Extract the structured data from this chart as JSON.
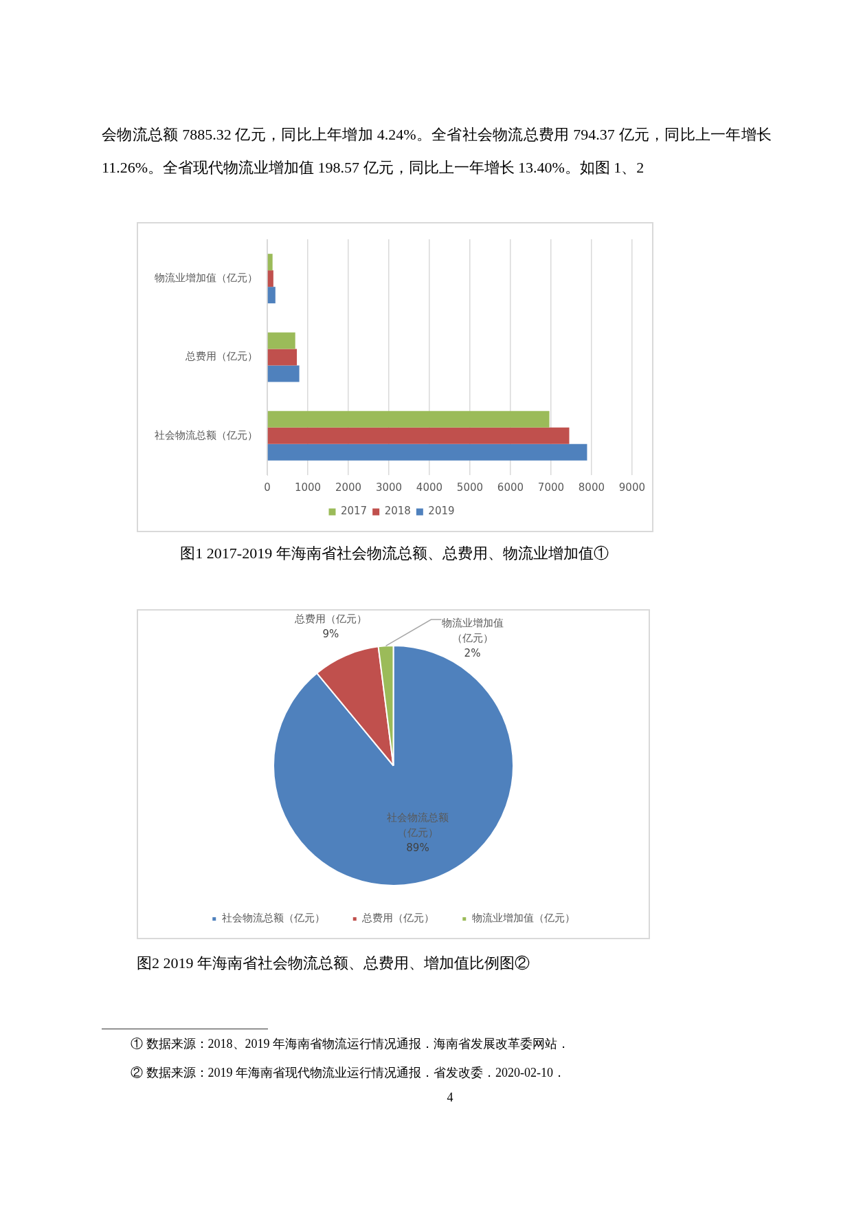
{
  "chart_data": [
    {
      "type": "bar",
      "orientation": "horizontal",
      "title": "图1  2017-2019 年海南省社会物流总额、总费用、物流业增加值①",
      "categories": [
        "物流业增加值（亿元）",
        "总费用（亿元）",
        "社会物流总额（亿元）"
      ],
      "series": [
        {
          "name": "2017",
          "color": "#9bbb59",
          "values": [
            130,
            690,
            6960
          ]
        },
        {
          "name": "2018",
          "color": "#c0504d",
          "values": [
            150,
            730,
            7450
          ]
        },
        {
          "name": "2019",
          "color": "#4f81bd",
          "values": [
            200,
            790,
            7890
          ]
        }
      ],
      "xlim": [
        0,
        9000
      ],
      "xticks": [
        0,
        1000,
        2000,
        3000,
        4000,
        5000,
        6000,
        7000,
        8000,
        9000
      ],
      "grid": "x",
      "legend": "bottom",
      "annotations": [
        "会物流总额 7885.32 亿元，同比上年增加 4.24%。全省社会物流总费用 794.37 亿元，同比上一年增长 11.26%。全省现代物流业增加值 198.57 亿元，同比上一年增长 13.40%。如图 1、2",
        "① 数据来源：2018、2019 年海南省物流运行情况通报．海南省发展改革委网站．"
      ]
    },
    {
      "type": "pie",
      "title": "图2  2019 年海南省社会物流总额、总费用、增加值比例图②",
      "categories": [
        "社会物流总额（亿元）",
        "总费用（亿元）",
        "物流业增加值（亿元）"
      ],
      "values": [
        89,
        9,
        2
      ],
      "colors": [
        "#4f81bd",
        "#c0504d",
        "#9bbb59"
      ],
      "value_labels": [
        "89%",
        "9%",
        "2%"
      ],
      "legend": "bottom",
      "annotations": [
        "② 数据来源：2019 年海南省现代物流业运行情况通报．省发改委．2020-02-10．",
        "4"
      ]
    }
  ]
}
